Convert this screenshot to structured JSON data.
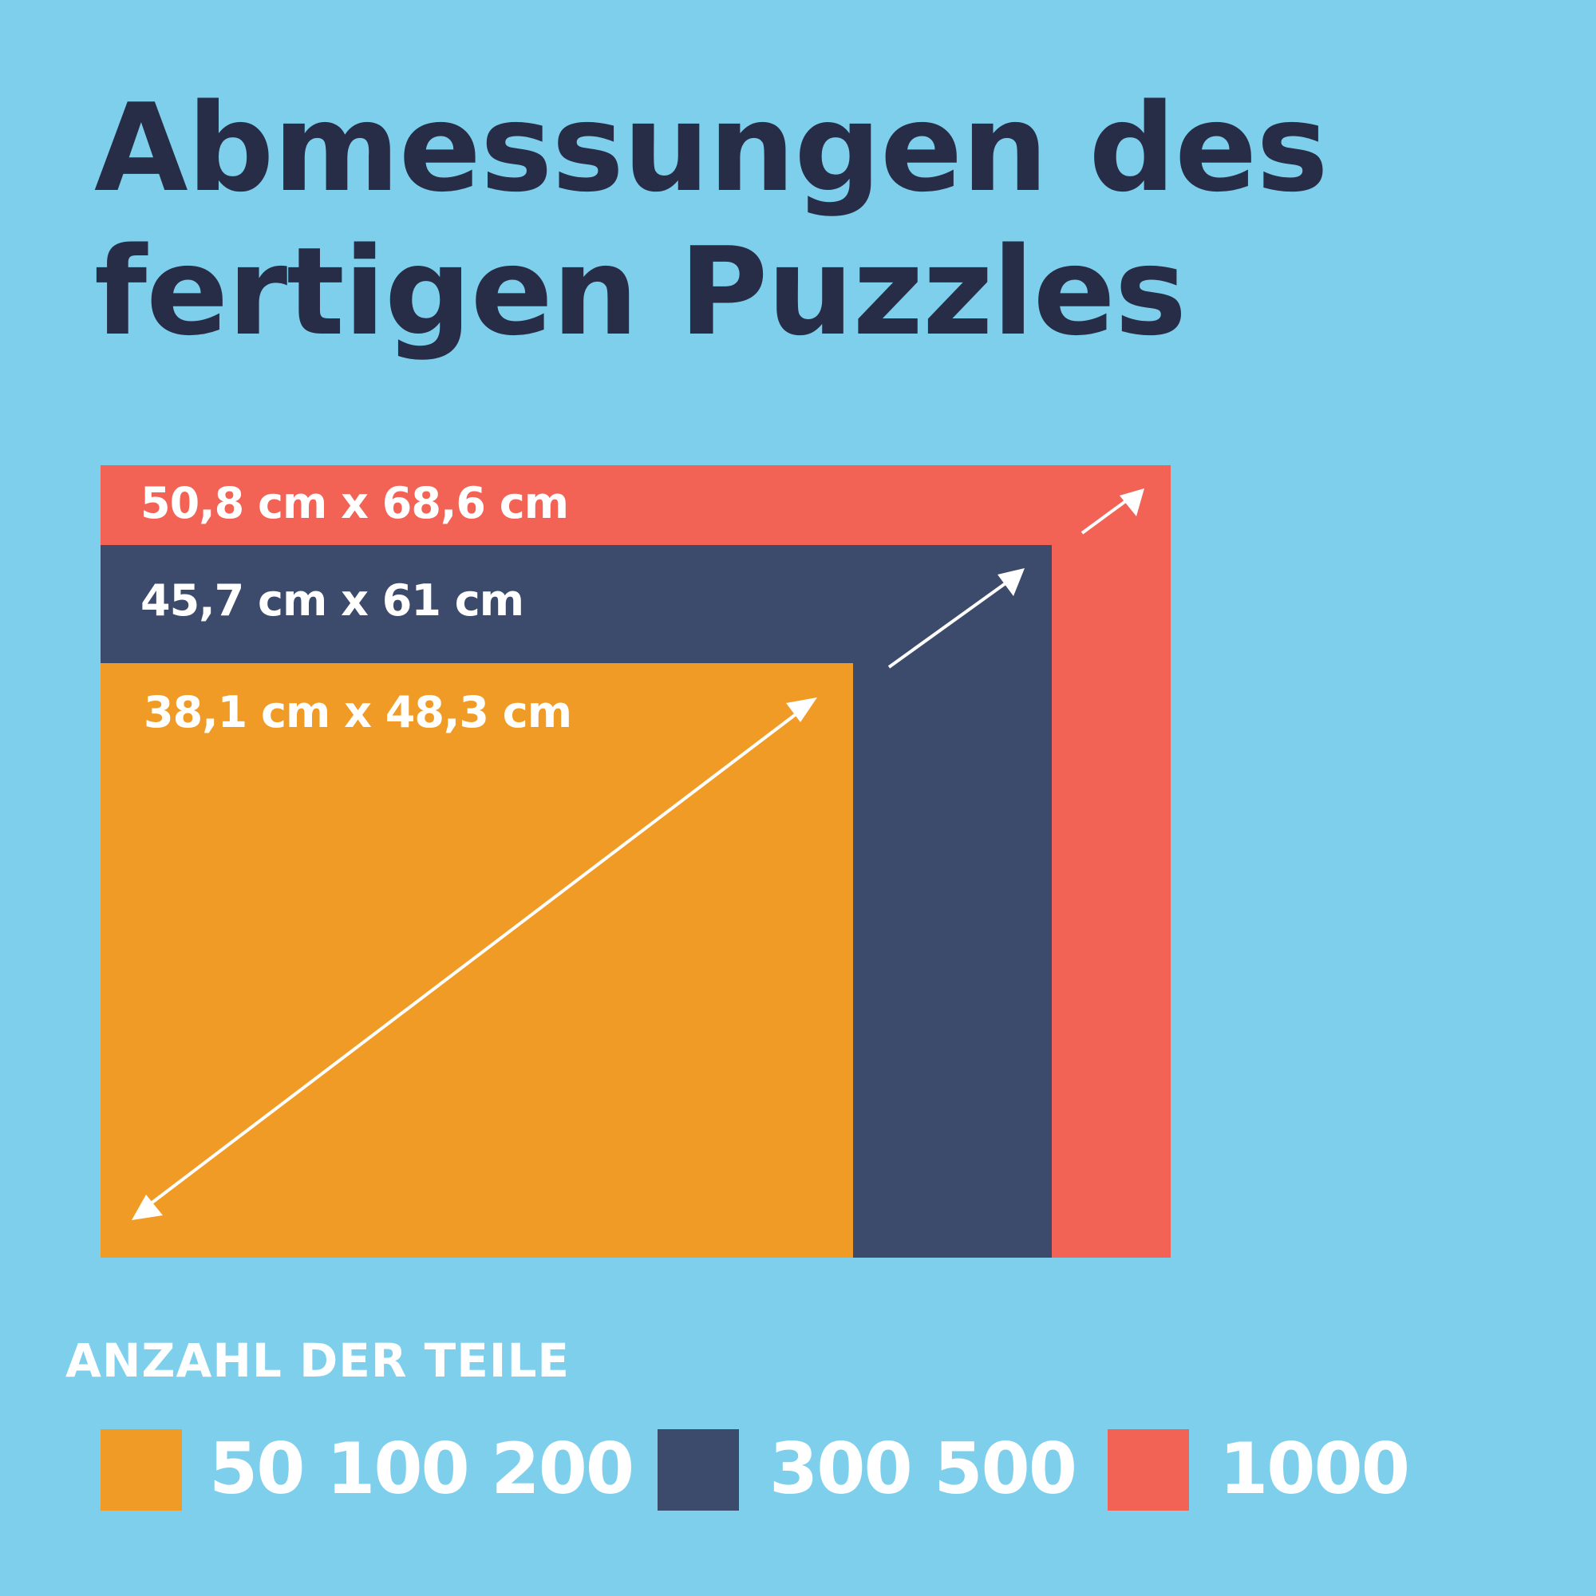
{
  "title": {
    "line1": "Abmessungen des",
    "line2": "fertigen Puzzles"
  },
  "sizes": [
    {
      "id": "large",
      "label": "50,8 cm x 68,6 cm",
      "color": "#f26356"
    },
    {
      "id": "medium",
      "label": "45,7 cm x 61 cm",
      "color": "#3c4a6b"
    },
    {
      "id": "small",
      "label": "38,1 cm x 48,3 cm",
      "color": "#f09b25"
    }
  ],
  "legend": {
    "heading": "ANZAHL DER TEILE",
    "items": [
      {
        "color": "#f09b25",
        "label": "50 100 200"
      },
      {
        "color": "#3c4a6b",
        "label": "300 500"
      },
      {
        "color": "#f26356",
        "label": "1000"
      }
    ]
  },
  "colors": {
    "background": "#7ecfec",
    "title": "#272d47",
    "text_on_shapes": "#ffffff",
    "arrow": "#ffffff"
  }
}
